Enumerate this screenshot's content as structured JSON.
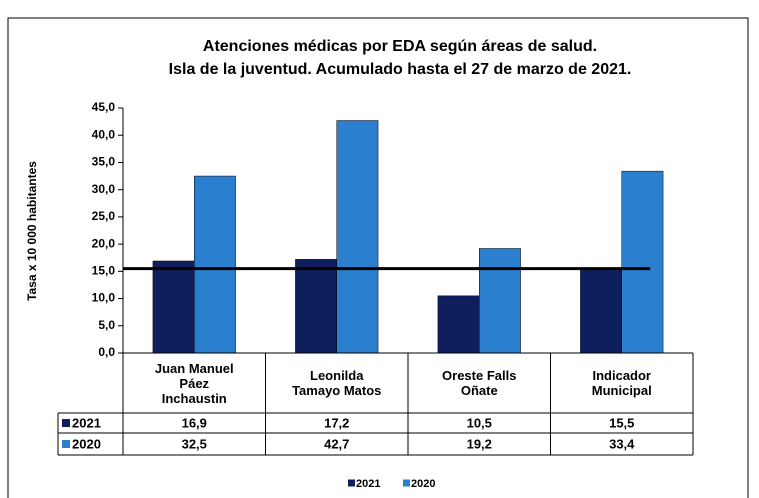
{
  "chart_data": {
    "type": "bar",
    "title": [
      "Atenciones médicas por EDA según áreas de salud.",
      "Isla de la juventud. Acumulado hasta el 27 de marzo de 2021."
    ],
    "y_label": "Tasa x 10 000 habitantes",
    "categories": [
      "Juan Manuel Páez Inchaustin",
      "Leonilda Tamayo Matos",
      "Oreste Falls Oñate",
      "Indicador Municipal"
    ],
    "series": [
      {
        "name": "2021",
        "color": "#0f1f5e",
        "values": [
          16.9,
          17.2,
          10.5,
          15.5
        ],
        "value_labels": [
          "16,9",
          "17,2",
          "10,5",
          "15,5"
        ]
      },
      {
        "name": "2020",
        "color": "#2b7fcf",
        "values": [
          32.5,
          42.7,
          19.2,
          33.4
        ],
        "value_labels": [
          "32,5",
          "42,7",
          "19,2",
          "33,4"
        ]
      }
    ],
    "reference_line": 15.5,
    "ylim": [
      0,
      45
    ],
    "yticks": [
      {
        "value": 0,
        "label": "0,0"
      },
      {
        "value": 5,
        "label": "5,0"
      },
      {
        "value": 10,
        "label": "10,0"
      },
      {
        "value": 15,
        "label": "15,0"
      },
      {
        "value": 20,
        "label": "20,0"
      },
      {
        "value": 25,
        "label": "25,0"
      },
      {
        "value": 30,
        "label": "30,0"
      },
      {
        "value": 35,
        "label": "35,0"
      },
      {
        "value": 40,
        "label": "40,0"
      },
      {
        "value": 45,
        "label": "45,0"
      }
    ],
    "legend": "bottom"
  }
}
